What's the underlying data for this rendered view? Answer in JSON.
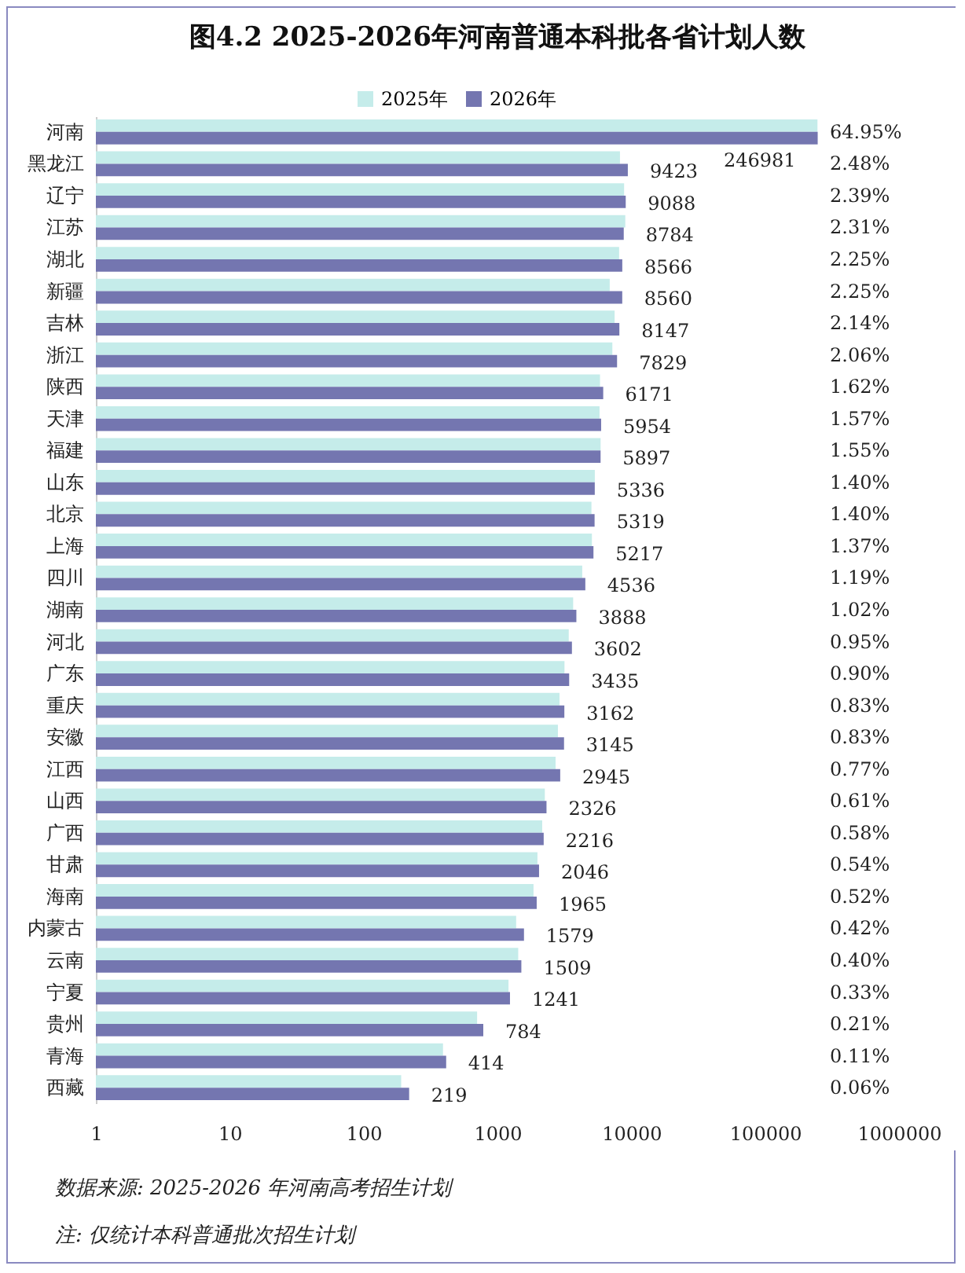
{
  "chart_data": {
    "type": "bar",
    "orientation": "horizontal",
    "title": "图4.2  2025-2026年河南普通本科批各省计划人数",
    "categories": [
      "河南",
      "黑龙江",
      "辽宁",
      "江苏",
      "湖北",
      "新疆",
      "吉林",
      "浙江",
      "陕西",
      "天津",
      "福建",
      "山东",
      "北京",
      "上海",
      "四川",
      "湖南",
      "河北",
      "广东",
      "重庆",
      "安徽",
      "江西",
      "山西",
      "广西",
      "甘肃",
      "海南",
      "内蒙古",
      "云南",
      "宁夏",
      "贵州",
      "青海",
      "西藏"
    ],
    "series": [
      {
        "name": "2025年",
        "color": "#c5ecea",
        "values": [
          246000,
          8230,
          8840,
          9020,
          8110,
          6900,
          7510,
          7220,
          5840,
          5790,
          5900,
          5340,
          5040,
          5080,
          4300,
          3680,
          3410,
          3170,
          2910,
          2830,
          2720,
          2260,
          2160,
          1990,
          1860,
          1380,
          1430,
          1210,
          705,
          392,
          191
        ]
      },
      {
        "name": "2026年",
        "color": "#7476b0",
        "values": [
          246981,
          9423,
          9088,
          8784,
          8566,
          8560,
          8147,
          7829,
          6171,
          5954,
          5897,
          5336,
          5319,
          5217,
          4536,
          3888,
          3602,
          3435,
          3162,
          3145,
          2945,
          2326,
          2216,
          2046,
          1965,
          1579,
          1509,
          1241,
          784,
          414,
          219
        ],
        "value_labels": [
          "246981",
          "9423",
          "9088",
          "8784",
          "8566",
          "8560",
          "8147",
          "7829",
          "6171",
          "5954",
          "5897",
          "5336",
          "5319",
          "5217",
          "4536",
          "3888",
          "3602",
          "3435",
          "3162",
          "3145",
          "2945",
          "2326",
          "2216",
          "2046",
          "1965",
          "1579",
          "1509",
          "1241",
          "784",
          "414",
          "219"
        ]
      }
    ],
    "log": "x",
    "xlim": [
      1,
      1000000
    ],
    "xticks": [
      1,
      10,
      100,
      1000,
      10000,
      100000,
      1000000
    ],
    "legend": "top",
    "annotations": [
      "64.95%",
      "2.48%",
      "2.39%",
      "2.31%",
      "2.25%",
      "2.25%",
      "2.14%",
      "2.06%",
      "1.62%",
      "1.57%",
      "1.55%",
      "1.40%",
      "1.40%",
      "1.37%",
      "1.19%",
      "1.02%",
      "0.95%",
      "0.90%",
      "0.83%",
      "0.83%",
      "0.77%",
      "0.61%",
      "0.58%",
      "0.54%",
      "0.52%",
      "0.42%",
      "0.40%",
      "0.33%",
      "0.21%",
      "0.11%",
      "0.06%",
      "数据来源:  2025-2026 年河南高考招生计划",
      "注:  仅统计本科普通批次招生计划"
    ]
  }
}
